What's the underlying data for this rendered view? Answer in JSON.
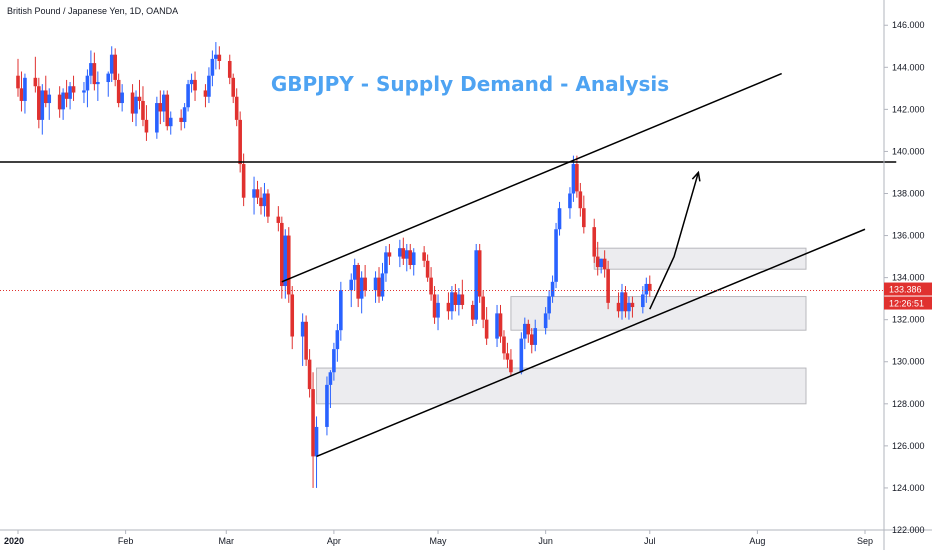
{
  "header": {
    "symbol": "British Pound / Japanese Yen, 1D, OANDA",
    "title": "GBPJPY - Supply Demand - Analysis"
  },
  "chart_data": {
    "type": "candlestick",
    "title": "GBPJPY - Supply Demand - Analysis",
    "instrument": "British Pound / Japanese Yen, 1D, OANDA",
    "ylim": [
      122,
      147.2
    ],
    "y_ticks": [
      "146.000",
      "144.000",
      "142.000",
      "140.000",
      "138.000",
      "136.000",
      "134.000",
      "132.000",
      "130.000",
      "128.000",
      "126.000",
      "124.000",
      "122.000"
    ],
    "x_ticks": [
      {
        "label": "2020",
        "date": "2020-01-01"
      },
      {
        "label": "Feb",
        "date": "2020-02-01"
      },
      {
        "label": "Mar",
        "date": "2020-03-01"
      },
      {
        "label": "Apr",
        "date": "2020-04-01"
      },
      {
        "label": "May",
        "date": "2020-05-01"
      },
      {
        "label": "Jun",
        "date": "2020-06-01"
      },
      {
        "label": "Jul",
        "date": "2020-07-01"
      },
      {
        "label": "Aug",
        "date": "2020-08-01"
      },
      {
        "label": "Sep",
        "date": "2020-09-01"
      }
    ],
    "last_price": "133.386",
    "countdown": "12:26:51",
    "colors": {
      "up": "#2962ff",
      "down": "#e0312f",
      "grid": "#ffffff",
      "zone_fill": "#e9e9ec",
      "zone_stroke": "#b8b8bd",
      "line": "#000000",
      "current_price": "#e0312f",
      "title": "#4ea3f2"
    },
    "candles": [
      [
        "2020-01-01",
        143.6,
        144.4,
        142.6,
        143.0
      ],
      [
        "2020-01-02",
        143.0,
        143.8,
        141.9,
        142.4
      ],
      [
        "2020-01-03",
        142.4,
        143.7,
        141.8,
        143.5
      ],
      [
        "2020-01-06",
        143.5,
        144.5,
        142.8,
        143.1
      ],
      [
        "2020-01-07",
        143.1,
        143.5,
        141.1,
        141.5
      ],
      [
        "2020-01-08",
        141.5,
        143.2,
        140.8,
        142.9
      ],
      [
        "2020-01-09",
        142.9,
        143.6,
        142.1,
        142.3
      ],
      [
        "2020-01-10",
        142.3,
        143.0,
        141.5,
        142.7
      ],
      [
        "2020-01-13",
        142.7,
        143.1,
        141.6,
        142.0
      ],
      [
        "2020-01-14",
        142.0,
        143.0,
        141.5,
        142.8
      ],
      [
        "2020-01-15",
        142.8,
        143.4,
        142.1,
        142.5
      ],
      [
        "2020-01-16",
        142.5,
        143.3,
        142.0,
        143.1
      ],
      [
        "2020-01-17",
        143.1,
        143.6,
        142.4,
        142.8
      ],
      [
        "2020-01-20",
        142.8,
        143.3,
        142.3,
        142.9
      ],
      [
        "2020-01-21",
        142.9,
        143.9,
        142.1,
        143.6
      ],
      [
        "2020-01-22",
        143.6,
        144.8,
        143.2,
        144.2
      ],
      [
        "2020-01-23",
        144.2,
        144.7,
        142.9,
        143.2
      ],
      [
        "2020-01-24",
        143.2,
        143.8,
        142.4,
        143.3
      ],
      [
        "2020-01-27",
        143.3,
        143.8,
        142.6,
        143.7
      ],
      [
        "2020-01-28",
        143.7,
        145.0,
        143.3,
        144.6
      ],
      [
        "2020-01-29",
        144.6,
        144.9,
        143.1,
        143.4
      ],
      [
        "2020-01-30",
        143.4,
        143.7,
        142.1,
        142.3
      ],
      [
        "2020-01-31",
        142.3,
        143.2,
        141.9,
        142.8
      ],
      [
        "2020-02-03",
        142.8,
        143.2,
        141.4,
        141.8
      ],
      [
        "2020-02-04",
        141.8,
        142.9,
        141.2,
        142.6
      ],
      [
        "2020-02-05",
        142.6,
        143.4,
        142.0,
        142.4
      ],
      [
        "2020-02-06",
        142.4,
        143.1,
        141.2,
        141.5
      ],
      [
        "2020-02-07",
        141.5,
        142.2,
        140.5,
        140.9
      ],
      [
        "2020-02-10",
        140.9,
        142.6,
        140.6,
        142.3
      ],
      [
        "2020-02-11",
        142.3,
        142.9,
        141.3,
        141.9
      ],
      [
        "2020-02-12",
        141.9,
        142.9,
        141.4,
        142.7
      ],
      [
        "2020-02-13",
        142.7,
        142.9,
        141.0,
        141.2
      ],
      [
        "2020-02-14",
        141.2,
        141.9,
        140.8,
        141.6
      ],
      [
        "2020-02-17",
        141.6,
        142.0,
        141.0,
        141.4
      ],
      [
        "2020-02-18",
        141.4,
        142.3,
        141.1,
        142.1
      ],
      [
        "2020-02-19",
        142.1,
        143.4,
        141.9,
        143.2
      ],
      [
        "2020-02-20",
        143.2,
        143.7,
        142.8,
        143.4
      ],
      [
        "2020-02-21",
        143.4,
        143.8,
        142.4,
        142.9
      ],
      [
        "2020-02-24",
        142.9,
        143.2,
        142.1,
        142.6
      ],
      [
        "2020-02-25",
        142.6,
        144.0,
        142.3,
        143.6
      ],
      [
        "2020-02-26",
        143.6,
        144.8,
        143.1,
        144.4
      ],
      [
        "2020-02-27",
        144.4,
        145.2,
        143.9,
        144.6
      ],
      [
        "2020-02-28",
        144.6,
        145.0,
        143.9,
        144.3
      ],
      [
        "2020-03-02",
        144.3,
        144.6,
        143.2,
        143.5
      ],
      [
        "2020-03-03",
        143.5,
        143.7,
        142.3,
        142.6
      ],
      [
        "2020-03-04",
        142.6,
        143.0,
        141.2,
        141.5
      ],
      [
        "2020-03-05",
        141.5,
        141.9,
        139.0,
        139.4
      ],
      [
        "2020-03-06",
        139.4,
        139.9,
        137.4,
        137.8
      ],
      [
        "2020-03-09",
        137.8,
        138.8,
        137.0,
        138.2
      ],
      [
        "2020-03-10",
        138.2,
        138.6,
        137.5,
        137.8
      ],
      [
        "2020-03-11",
        137.8,
        138.3,
        137.0,
        137.4
      ],
      [
        "2020-03-12",
        137.4,
        138.5,
        136.9,
        138.0
      ],
      [
        "2020-03-13",
        138.0,
        138.2,
        136.6,
        136.9
      ],
      [
        "2020-03-16",
        136.9,
        137.4,
        136.2,
        136.6
      ],
      [
        "2020-03-17",
        136.6,
        136.9,
        133.0,
        133.6
      ],
      [
        "2020-03-18",
        133.6,
        136.3,
        133.0,
        136.0
      ],
      [
        "2020-03-19",
        136.0,
        136.4,
        132.8,
        133.2
      ],
      [
        "2020-03-20",
        133.2,
        133.6,
        130.6,
        131.2
      ],
      [
        "2020-03-23",
        131.2,
        132.3,
        129.8,
        131.9
      ],
      [
        "2020-03-24",
        131.9,
        132.2,
        129.8,
        130.1
      ],
      [
        "2020-03-25",
        130.1,
        130.6,
        128.3,
        128.7
      ],
      [
        "2020-03-26",
        128.7,
        129.5,
        124.0,
        125.5
      ],
      [
        "2020-03-27",
        125.5,
        127.4,
        124.0,
        126.9
      ],
      [
        "2020-03-30",
        126.9,
        129.3,
        126.5,
        128.9
      ],
      [
        "2020-03-31",
        128.9,
        129.6,
        127.8,
        129.5
      ],
      [
        "2020-04-01",
        129.5,
        130.9,
        129.1,
        130.6
      ],
      [
        "2020-04-02",
        130.6,
        131.8,
        130.0,
        131.5
      ],
      [
        "2020-04-03",
        131.5,
        133.8,
        131.0,
        133.4
      ],
      [
        "2020-04-06",
        133.4,
        134.2,
        132.6,
        133.9
      ],
      [
        "2020-04-07",
        133.9,
        134.9,
        133.4,
        134.6
      ],
      [
        "2020-04-08",
        134.6,
        134.7,
        132.6,
        133.0
      ],
      [
        "2020-04-09",
        133.0,
        134.3,
        132.3,
        134.0
      ],
      [
        "2020-04-10",
        134.0,
        134.6,
        133.1,
        133.4
      ],
      [
        "2020-04-13",
        133.4,
        134.3,
        132.8,
        134.0
      ],
      [
        "2020-04-14",
        134.0,
        134.5,
        132.8,
        133.1
      ],
      [
        "2020-04-15",
        133.1,
        134.7,
        132.9,
        134.2
      ],
      [
        "2020-04-16",
        134.2,
        135.5,
        133.8,
        135.2
      ],
      [
        "2020-04-17",
        135.2,
        135.6,
        134.6,
        135.0
      ],
      [
        "2020-04-20",
        135.0,
        135.8,
        134.5,
        135.4
      ],
      [
        "2020-04-21",
        135.4,
        135.9,
        134.6,
        134.9
      ],
      [
        "2020-04-22",
        134.9,
        135.6,
        134.3,
        135.3
      ],
      [
        "2020-04-23",
        135.3,
        135.6,
        134.4,
        134.6
      ],
      [
        "2020-04-24",
        134.6,
        135.4,
        134.1,
        135.2
      ],
      [
        "2020-04-27",
        135.2,
        135.5,
        134.5,
        134.8
      ],
      [
        "2020-04-28",
        134.8,
        135.1,
        133.8,
        134.0
      ],
      [
        "2020-04-29",
        134.0,
        134.5,
        132.9,
        133.2
      ],
      [
        "2020-04-30",
        133.2,
        133.6,
        131.8,
        132.1
      ],
      [
        "2020-05-01",
        132.1,
        133.2,
        131.5,
        132.8
      ],
      [
        "2020-05-04",
        132.8,
        133.3,
        132.0,
        132.4
      ],
      [
        "2020-05-05",
        132.4,
        133.6,
        132.0,
        133.3
      ],
      [
        "2020-05-06",
        133.3,
        133.7,
        132.4,
        132.7
      ],
      [
        "2020-05-07",
        132.7,
        133.5,
        132.2,
        133.2
      ],
      [
        "2020-05-08",
        133.2,
        133.9,
        132.5,
        132.7
      ],
      [
        "2020-05-11",
        132.7,
        132.9,
        131.7,
        132.0
      ],
      [
        "2020-05-12",
        132.0,
        135.6,
        131.8,
        135.3
      ],
      [
        "2020-05-13",
        135.3,
        135.6,
        132.8,
        133.1
      ],
      [
        "2020-05-14",
        133.1,
        133.4,
        131.6,
        132.0
      ],
      [
        "2020-05-15",
        132.0,
        132.6,
        130.8,
        131.1
      ],
      [
        "2020-05-18",
        131.1,
        132.7,
        130.7,
        132.3
      ],
      [
        "2020-05-19",
        132.3,
        132.7,
        130.9,
        131.2
      ],
      [
        "2020-05-20",
        131.2,
        131.5,
        130.1,
        130.4
      ],
      [
        "2020-05-21",
        130.4,
        130.9,
        129.7,
        130.1
      ],
      [
        "2020-05-22",
        130.1,
        130.6,
        129.3,
        129.5
      ],
      [
        "2020-05-25",
        129.5,
        131.4,
        129.4,
        131.1
      ],
      [
        "2020-05-26",
        131.1,
        132.1,
        130.6,
        131.8
      ],
      [
        "2020-05-27",
        131.8,
        132.0,
        130.9,
        131.3
      ],
      [
        "2020-05-28",
        131.3,
        131.6,
        130.4,
        130.8
      ],
      [
        "2020-05-29",
        130.8,
        132.0,
        130.5,
        131.6
      ],
      [
        "2020-06-01",
        131.6,
        132.6,
        131.3,
        132.3
      ],
      [
        "2020-06-02",
        132.3,
        133.4,
        132.0,
        133.1
      ],
      [
        "2020-06-03",
        133.1,
        134.1,
        132.8,
        133.8
      ],
      [
        "2020-06-04",
        133.8,
        136.6,
        133.5,
        136.3
      ],
      [
        "2020-06-05",
        136.3,
        137.6,
        136.0,
        137.3
      ],
      [
        "2020-06-08",
        137.3,
        138.3,
        136.8,
        138.0
      ],
      [
        "2020-06-09",
        138.0,
        139.8,
        137.6,
        139.4
      ],
      [
        "2020-06-10",
        139.4,
        139.8,
        137.8,
        138.1
      ],
      [
        "2020-06-11",
        138.1,
        138.5,
        136.9,
        137.3
      ],
      [
        "2020-06-12",
        137.3,
        137.9,
        136.1,
        136.4
      ],
      [
        "2020-06-15",
        136.4,
        136.8,
        134.7,
        135.0
      ],
      [
        "2020-06-16",
        135.0,
        135.7,
        134.1,
        134.5
      ],
      [
        "2020-06-17",
        134.5,
        134.9,
        134.2,
        134.9
      ],
      [
        "2020-06-18",
        134.9,
        135.3,
        134.0,
        134.4
      ],
      [
        "2020-06-19",
        134.4,
        134.8,
        132.5,
        132.8
      ],
      [
        "2020-06-22",
        132.8,
        133.3,
        132.1,
        132.4
      ],
      [
        "2020-06-23",
        132.4,
        133.7,
        132.0,
        133.3
      ],
      [
        "2020-06-24",
        133.3,
        133.6,
        132.1,
        132.4
      ],
      [
        "2020-06-25",
        132.4,
        133.1,
        132.0,
        132.8
      ],
      [
        "2020-06-26",
        132.8,
        133.1,
        132.1,
        132.6
      ],
      [
        "2020-06-29",
        132.6,
        133.6,
        132.3,
        133.2
      ],
      [
        "2020-06-30",
        133.2,
        134.0,
        132.8,
        133.7
      ],
      [
        "2020-07-01",
        133.7,
        134.1,
        133.1,
        133.386
      ]
    ],
    "zones": [
      {
        "from": "2020-03-27",
        "to": "2020-08-15",
        "low": 128.0,
        "high": 129.7
      },
      {
        "from": "2020-05-22",
        "to": "2020-08-15",
        "low": 131.5,
        "high": 133.1
      },
      {
        "from": "2020-06-15",
        "to": "2020-08-15",
        "low": 134.4,
        "high": 135.4
      }
    ],
    "lines": [
      {
        "from": [
          "2020-03-27",
          125.5
        ],
        "to": [
          "2020-09-01",
          136.3
        ]
      },
      {
        "from": [
          "2020-03-17",
          133.8
        ],
        "to": [
          "2020-08-08",
          143.7
        ]
      },
      {
        "from": [
          "2019-12-20",
          139.5
        ],
        "to": [
          "2020-09-10",
          139.5
        ]
      }
    ],
    "arrows": [
      {
        "points": [
          [
            "2020-07-01",
            132.5
          ],
          [
            "2020-07-08",
            135.0
          ],
          [
            "2020-07-15",
            139.0
          ]
        ]
      }
    ]
  }
}
